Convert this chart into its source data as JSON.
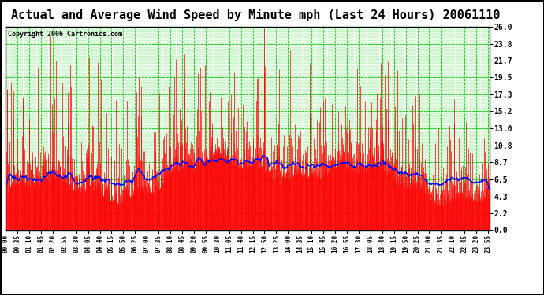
{
  "title": "Actual and Average Wind Speed by Minute mph (Last 24 Hours) 20061110",
  "copyright": "Copyright 2006 Cartronics.com",
  "yticks": [
    0.0,
    2.2,
    4.3,
    6.5,
    8.7,
    10.8,
    13.0,
    15.2,
    17.3,
    19.5,
    21.7,
    23.8,
    26.0
  ],
  "ymax": 26.0,
  "ymin": 0.0,
  "bg_color": "#ffffff",
  "plot_bg_color": "#ffffff",
  "bar_color": "#ff0000",
  "avg_line_color": "#0000ff",
  "grid_color": "#00cc00",
  "title_fontsize": 11,
  "copyright_fontsize": 6,
  "xlabel_rotation": 90,
  "num_minutes": 1440,
  "tick_step": 35,
  "rand_seed": 42
}
